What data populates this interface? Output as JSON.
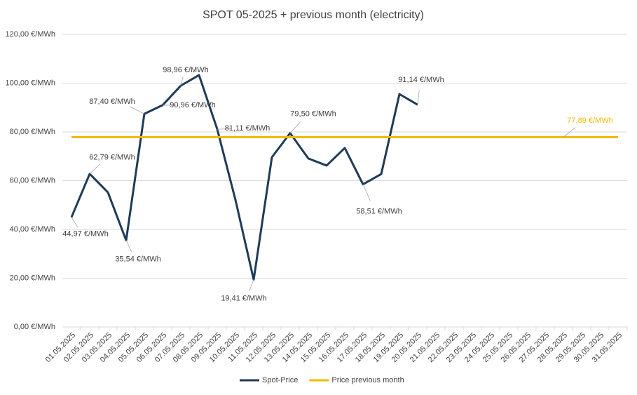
{
  "chart_data": {
    "type": "line",
    "title": "SPOT 05-2025 + previous month (electricity)",
    "categories": [
      "01.05.2025",
      "02.05.2025",
      "03.05.2025",
      "04.05.2025",
      "05.05.2025",
      "06.05.2025",
      "07.05.2025",
      "08.05.2025",
      "09.05.2025",
      "10.05.2025",
      "11.05.2025",
      "12.05.2025",
      "13.05.2025",
      "14.05.2025",
      "15.05.2025",
      "16.05.2025",
      "17.05.2025",
      "18.05.2025",
      "19.05.2025",
      "20.05.2025",
      "21.05.2025",
      "22.05.2025",
      "23.05.2025",
      "24.05.2025",
      "25.05.2025",
      "26.05.2025",
      "27.05.2025",
      "28.05.2025",
      "29.05.2025",
      "30.05.2025",
      "31.05.2025"
    ],
    "series": [
      {
        "name": "Spot-Price",
        "color": "#1f3b57",
        "values": [
          44.97,
          62.79,
          55.2,
          35.54,
          87.4,
          90.96,
          98.96,
          103.3,
          81.11,
          52.1,
          19.41,
          69.6,
          79.5,
          69.1,
          66.2,
          73.4,
          58.51,
          62.7,
          95.5,
          91.14,
          null,
          null,
          null,
          null,
          null,
          null,
          null,
          null,
          null,
          null,
          null
        ],
        "value_labels": [
          "44,97 €/MWh",
          "62,79 €/MWh",
          null,
          "35,54 €/MWh",
          "87,40 €/MWh",
          "90,96 €/MWh",
          "98,96 €/MWh",
          null,
          "81,11 €/MWh",
          null,
          "19,41 €/MWh",
          null,
          "79,50 €/MWh",
          null,
          null,
          null,
          "58,51 €/MWh",
          null,
          null,
          "91,14 €/MWh",
          null,
          null,
          null,
          null,
          null,
          null,
          null,
          null,
          null,
          null,
          null
        ]
      },
      {
        "name": "Price previous month",
        "color": "#f2b800",
        "values": [
          77.89,
          77.89,
          77.89,
          77.89,
          77.89,
          77.89,
          77.89,
          77.89,
          77.89,
          77.89,
          77.89,
          77.89,
          77.89,
          77.89,
          77.89,
          77.89,
          77.89,
          77.89,
          77.89,
          77.89,
          77.89,
          77.89,
          77.89,
          77.89,
          77.89,
          77.89,
          77.89,
          77.89,
          77.89,
          77.89,
          77.89
        ],
        "value_labels": [
          null,
          null,
          null,
          null,
          null,
          null,
          null,
          null,
          null,
          null,
          null,
          null,
          null,
          null,
          null,
          null,
          null,
          null,
          null,
          null,
          null,
          null,
          null,
          null,
          null,
          null,
          null,
          "77,89 €/MWh",
          null,
          null,
          null
        ]
      }
    ],
    "ylim": [
      0,
      120
    ],
    "yticks": [
      {
        "value": 0,
        "label": "0,00 €/MWh"
      },
      {
        "value": 20,
        "label": "20,00 €/MWh"
      },
      {
        "value": 40,
        "label": "40,00 €/MWh"
      },
      {
        "value": 60,
        "label": "60,00 €/MWh"
      },
      {
        "value": 80,
        "label": "80,00 €/MWh"
      },
      {
        "value": 100,
        "label": "100,00 €/MWh"
      },
      {
        "value": 120,
        "label": "120,00 €/MWh"
      }
    ],
    "grid": true,
    "legend": "bottom"
  }
}
